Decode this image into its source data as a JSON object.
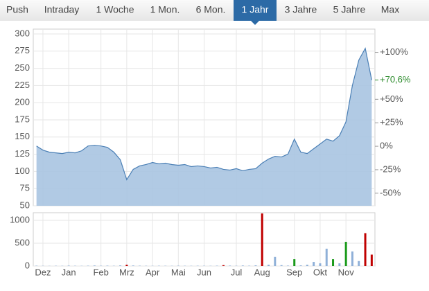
{
  "tabs": {
    "items": [
      "Push",
      "Intraday",
      "1 Woche",
      "1 Mon.",
      "6 Mon.",
      "1 Jahr",
      "3 Jahre",
      "5 Jahre",
      "Max"
    ],
    "active": 5
  },
  "chart_data": [
    {
      "type": "area",
      "color": "#4a7fb5",
      "fill": "#a9c4e1",
      "values": [
        137,
        131,
        128,
        127,
        126,
        128,
        127,
        130,
        137,
        138,
        137,
        135,
        128,
        117,
        88,
        103,
        108,
        110,
        113,
        111,
        112,
        110,
        109,
        110,
        107,
        108,
        107,
        105,
        106,
        103,
        102,
        104,
        101,
        103,
        104,
        112,
        118,
        122,
        121,
        125,
        147,
        128,
        126,
        133,
        140,
        147,
        144,
        152,
        172,
        225,
        262,
        279,
        233
      ],
      "ylim": [
        50,
        300
      ],
      "yticks": [
        50,
        75,
        100,
        125,
        150,
        175,
        200,
        225,
        250,
        275,
        300
      ],
      "y2lim": [
        -63.4,
        119.6
      ],
      "y2ticks": [
        {
          "value": 100,
          "label": "+100%"
        },
        {
          "value": 50,
          "label": "+50%"
        },
        {
          "value": 25,
          "label": "+25%"
        },
        {
          "value": 0,
          "label": "0%"
        },
        {
          "value": -25,
          "label": "-25%"
        },
        {
          "value": -50,
          "label": "-50%"
        }
      ],
      "annotation": {
        "value": 70.6,
        "label": "+70,6%",
        "color": "#2a8a2a"
      }
    },
    {
      "type": "bar",
      "categories": [
        null,
        "Dez",
        null,
        null,
        null,
        "Jan",
        null,
        null,
        null,
        null,
        "Feb",
        null,
        null,
        null,
        "Mrz",
        null,
        null,
        null,
        "Apr",
        null,
        null,
        null,
        "Mai",
        null,
        null,
        null,
        "Jun",
        null,
        null,
        null,
        null,
        "Jul",
        null,
        null,
        null,
        "Aug",
        null,
        null,
        null,
        null,
        "Sep",
        null,
        null,
        null,
        "Okt",
        null,
        null,
        null,
        "Nov",
        null,
        null,
        null,
        null
      ],
      "values": [
        8,
        5,
        4,
        6,
        5,
        10,
        6,
        5,
        8,
        12,
        7,
        9,
        6,
        14,
        30,
        12,
        8,
        6,
        5,
        7,
        6,
        5,
        8,
        6,
        5,
        7,
        6,
        5,
        8,
        20,
        10,
        6,
        12,
        8,
        15,
        1150,
        30,
        200,
        20,
        10,
        150,
        15,
        30,
        90,
        60,
        380,
        150,
        60,
        530,
        320,
        110,
        720,
        250
      ],
      "colors": [
        "#8fb0d8",
        "#8fb0d8",
        "#8fb0d8",
        "#8fb0d8",
        "#8fb0d8",
        "#8fb0d8",
        "#8fb0d8",
        "#8fb0d8",
        "#8fb0d8",
        "#8fb0d8",
        "#8fb0d8",
        "#8fb0d8",
        "#8fb0d8",
        "#8fb0d8",
        "#c00000",
        "#8fb0d8",
        "#8fb0d8",
        "#8fb0d8",
        "#8fb0d8",
        "#8fb0d8",
        "#8fb0d8",
        "#8fb0d8",
        "#8fb0d8",
        "#8fb0d8",
        "#8fb0d8",
        "#8fb0d8",
        "#8fb0d8",
        "#8fb0d8",
        "#8fb0d8",
        "#c00000",
        "#8fb0d8",
        "#8fb0d8",
        "#8fb0d8",
        "#8fb0d8",
        "#8fb0d8",
        "#c00000",
        "#8fb0d8",
        "#8fb0d8",
        "#8fb0d8",
        "#8fb0d8",
        "#1a9a1a",
        "#8fb0d8",
        "#8fb0d8",
        "#8fb0d8",
        "#8fb0d8",
        "#8fb0d8",
        "#1a9a1a",
        "#8fb0d8",
        "#1a9a1a",
        "#8fb0d8",
        "#8fb0d8",
        "#c00000",
        "#c00000"
      ],
      "ylim": [
        0,
        1170
      ],
      "yticks": [
        0,
        500,
        1000
      ]
    }
  ]
}
